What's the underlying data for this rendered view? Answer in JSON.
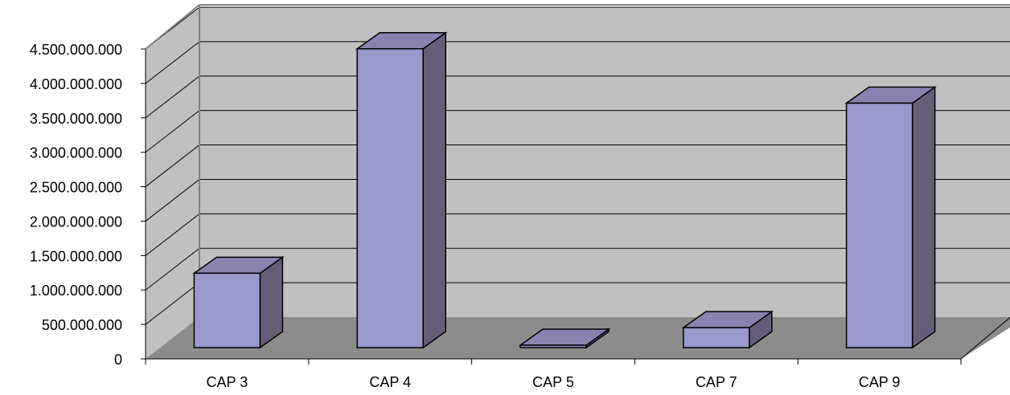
{
  "chart_data": {
    "type": "bar",
    "style": "3d-column",
    "categories": [
      "CAP 3",
      "CAP 4",
      "CAP 5",
      "CAP 7",
      "CAP 9"
    ],
    "series": [
      {
        "values": [
          1080000000,
          4340000000,
          15000000,
          290000000,
          3550000000
        ],
        "color_front": "#9999cc",
        "color_side": "#665e78",
        "color_top": "#8a82b0"
      }
    ],
    "ylim": [
      0,
      4500000000
    ],
    "yticks": [
      0,
      500000000,
      1000000000,
      1500000000,
      2000000000,
      2500000000,
      3000000000,
      3500000000,
      4000000000,
      4500000000
    ],
    "ytick_labels": [
      "0",
      "500.000.000",
      "1.000.000.000",
      "1.500.000.000",
      "2.000.000.000",
      "2.500.000.000",
      "3.000.000.000",
      "3.500.000.000",
      "4.000.000.000",
      "4.500.000.000"
    ],
    "grid": true,
    "legend": "none",
    "title": "",
    "xlabel": "",
    "ylabel": "",
    "colors": {
      "wall": "#c0c0c0",
      "floor": "#8c8c8c",
      "grid": "#000000",
      "wall_edge": "#808080"
    }
  }
}
